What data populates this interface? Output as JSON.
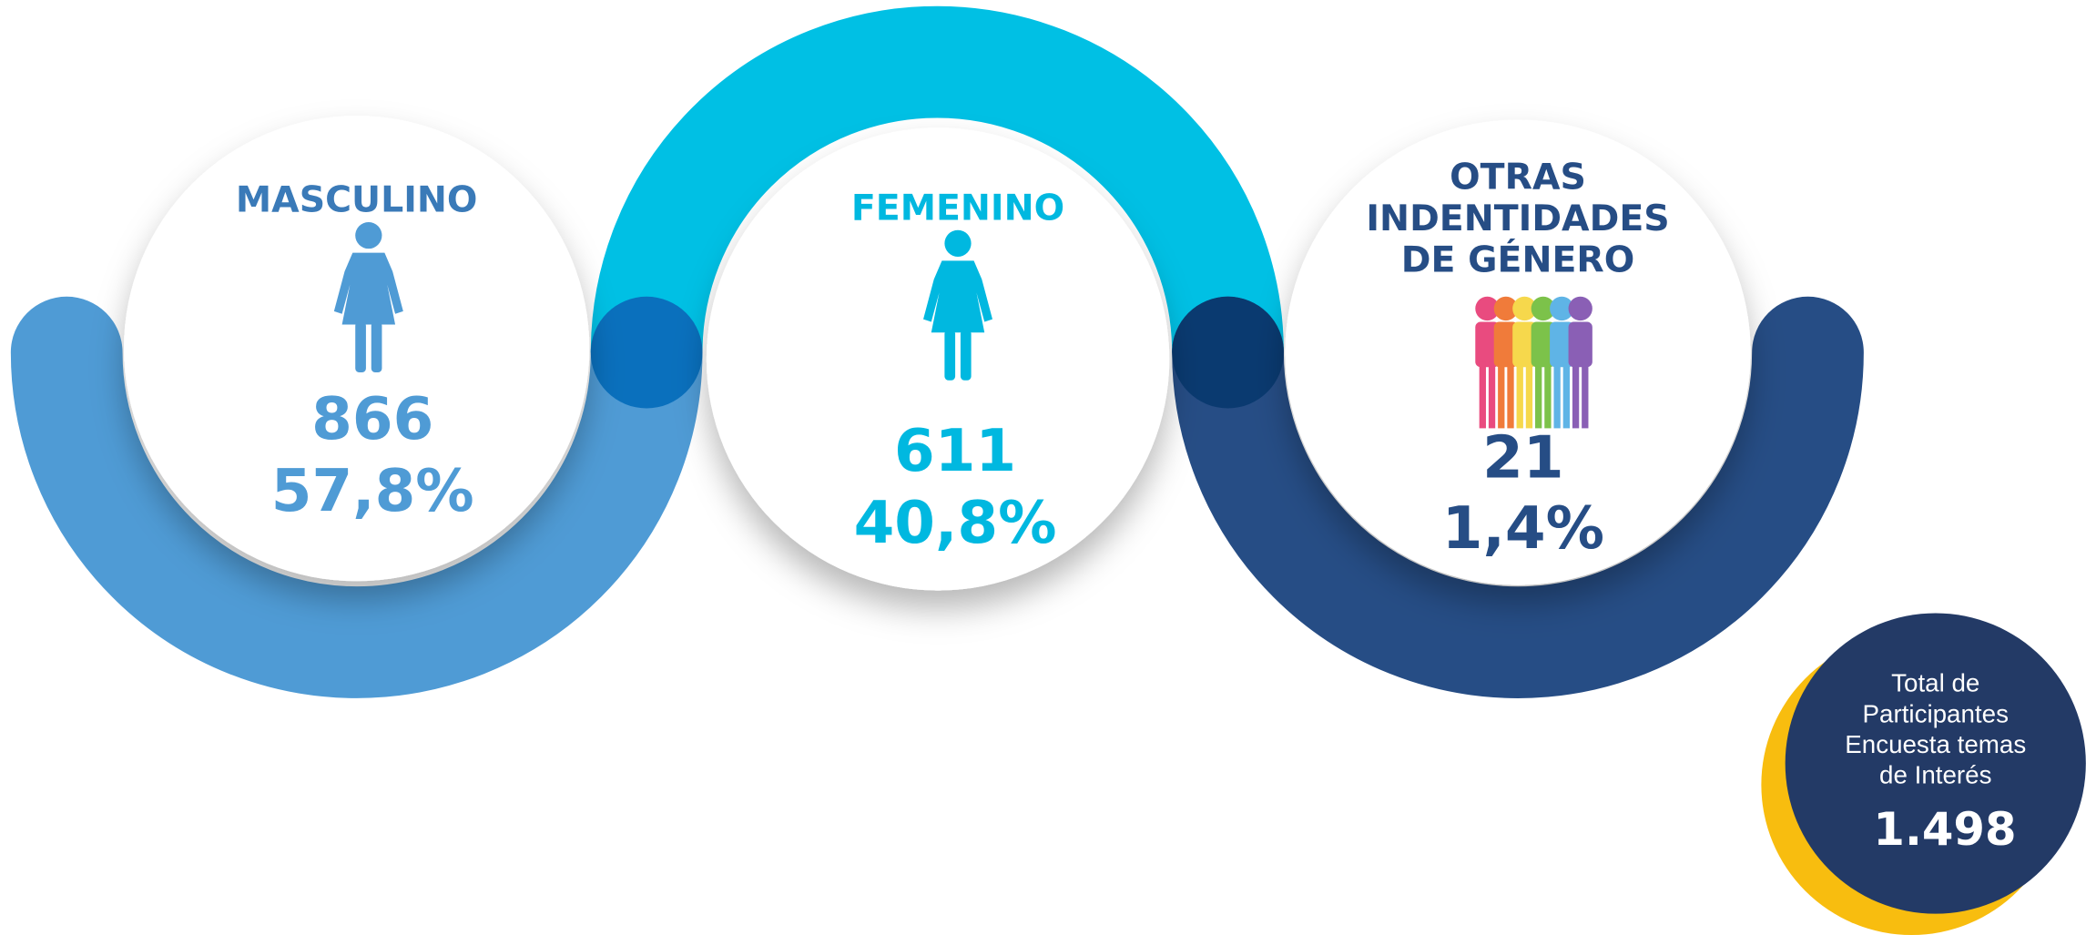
{
  "items": [
    {
      "title_lines": [
        "MASCULINO"
      ],
      "count": "866",
      "percent": "57,8%"
    },
    {
      "title_lines": [
        "FEMENINO"
      ],
      "count": "611",
      "percent": "40,8%"
    },
    {
      "title_lines": [
        "OTRAS",
        "INDENTIDADES",
        "DE GÉNERO"
      ],
      "count": "21",
      "percent": "1,4%"
    }
  ],
  "total": {
    "lines": [
      "Total de",
      "Participantes",
      "Encuesta temas",
      "de Interés"
    ],
    "value": "1.498"
  }
}
